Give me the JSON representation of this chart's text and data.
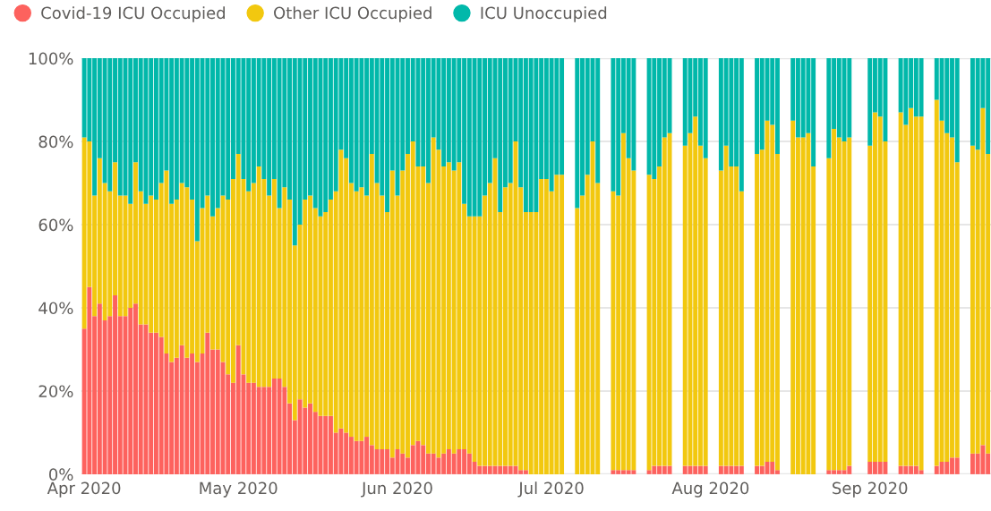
{
  "chart_data": {
    "type": "bar",
    "stacked": true,
    "x": [
      "2020-04-01",
      "2020-04-02",
      "2020-04-03",
      "2020-04-04",
      "2020-04-05",
      "2020-04-06",
      "2020-04-07",
      "2020-04-08",
      "2020-04-09",
      "2020-04-10",
      "2020-04-11",
      "2020-04-12",
      "2020-04-13",
      "2020-04-14",
      "2020-04-15",
      "2020-04-16",
      "2020-04-17",
      "2020-04-18",
      "2020-04-19",
      "2020-04-20",
      "2020-04-21",
      "2020-04-22",
      "2020-04-23",
      "2020-04-24",
      "2020-04-25",
      "2020-04-26",
      "2020-04-27",
      "2020-04-28",
      "2020-04-29",
      "2020-04-30",
      "2020-05-01",
      "2020-05-02",
      "2020-05-03",
      "2020-05-04",
      "2020-05-05",
      "2020-05-06",
      "2020-05-07",
      "2020-05-08",
      "2020-05-09",
      "2020-05-10",
      "2020-05-11",
      "2020-05-12",
      "2020-05-13",
      "2020-05-14",
      "2020-05-15",
      "2020-05-16",
      "2020-05-17",
      "2020-05-18",
      "2020-05-19",
      "2020-05-20",
      "2020-05-21",
      "2020-05-22",
      "2020-05-23",
      "2020-05-24",
      "2020-05-25",
      "2020-05-26",
      "2020-05-27",
      "2020-05-28",
      "2020-05-29",
      "2020-05-30",
      "2020-05-31",
      "2020-06-01",
      "2020-06-02",
      "2020-06-03",
      "2020-06-04",
      "2020-06-05",
      "2020-06-06",
      "2020-06-07",
      "2020-06-08",
      "2020-06-09",
      "2020-06-10",
      "2020-06-11",
      "2020-06-12",
      "2020-06-13",
      "2020-06-14",
      "2020-06-15",
      "2020-06-16",
      "2020-06-17",
      "2020-06-18",
      "2020-06-19",
      "2020-06-20",
      "2020-06-21",
      "2020-06-22",
      "2020-06-23",
      "2020-06-24",
      "2020-06-25",
      "2020-06-26",
      "2020-06-27",
      "2020-06-28",
      "2020-06-29",
      "2020-06-30",
      "2020-07-01",
      "2020-07-02",
      "2020-07-03",
      "2020-07-06",
      "2020-07-07",
      "2020-07-08",
      "2020-07-09",
      "2020-07-10",
      "2020-07-13",
      "2020-07-14",
      "2020-07-15",
      "2020-07-16",
      "2020-07-17",
      "2020-07-20",
      "2020-07-21",
      "2020-07-22",
      "2020-07-23",
      "2020-07-24",
      "2020-07-27",
      "2020-07-28",
      "2020-07-29",
      "2020-07-30",
      "2020-07-31",
      "2020-08-03",
      "2020-08-04",
      "2020-08-05",
      "2020-08-06",
      "2020-08-07",
      "2020-08-10",
      "2020-08-11",
      "2020-08-12",
      "2020-08-13",
      "2020-08-14",
      "2020-08-17",
      "2020-08-18",
      "2020-08-19",
      "2020-08-20",
      "2020-08-21",
      "2020-08-24",
      "2020-08-25",
      "2020-08-26",
      "2020-08-27",
      "2020-08-28",
      "2020-09-01",
      "2020-09-02",
      "2020-09-03",
      "2020-09-04",
      "2020-09-07",
      "2020-09-08",
      "2020-09-09",
      "2020-09-10",
      "2020-09-11",
      "2020-09-14",
      "2020-09-15",
      "2020-09-16",
      "2020-09-17",
      "2020-09-18",
      "2020-09-21",
      "2020-09-22",
      "2020-09-23",
      "2020-09-24"
    ],
    "series": [
      {
        "name": "Covid-19 ICU Occupied",
        "color": "#fd625e",
        "values": [
          35,
          45,
          38,
          41,
          37,
          38,
          43,
          38,
          38,
          40,
          41,
          36,
          36,
          34,
          34,
          33,
          29,
          27,
          28,
          31,
          28,
          29,
          27,
          29,
          34,
          30,
          30,
          27,
          24,
          22,
          31,
          24,
          22,
          22,
          21,
          21,
          21,
          23,
          23,
          21,
          17,
          13,
          18,
          16,
          17,
          15,
          14,
          14,
          14,
          10,
          11,
          10,
          9,
          8,
          8,
          9,
          7,
          6,
          6,
          6,
          4,
          6,
          5,
          4,
          7,
          8,
          7,
          5,
          5,
          4,
          5,
          6,
          5,
          6,
          6,
          5,
          3,
          2,
          2,
          2,
          2,
          2,
          2,
          2,
          2,
          1,
          1,
          0,
          0,
          0,
          0,
          0,
          0,
          0,
          0,
          0,
          0,
          0,
          0,
          1,
          1,
          1,
          1,
          1,
          1,
          2,
          2,
          2,
          2,
          2,
          2,
          2,
          2,
          2,
          2,
          2,
          2,
          2,
          2,
          2,
          2,
          3,
          3,
          1,
          0,
          0,
          0,
          0,
          0,
          1,
          1,
          1,
          1,
          2,
          3,
          3,
          3,
          3,
          2,
          2,
          2,
          2,
          1,
          2,
          3,
          3,
          4,
          4,
          5,
          5,
          7,
          5
        ]
      },
      {
        "name": "Other ICU Occupied",
        "color": "#f2c80f",
        "values": [
          46,
          35,
          29,
          35,
          33,
          30,
          32,
          29,
          29,
          25,
          34,
          32,
          29,
          33,
          32,
          37,
          44,
          38,
          38,
          39,
          41,
          37,
          29,
          35,
          33,
          32,
          34,
          40,
          42,
          49,
          46,
          47,
          46,
          48,
          53,
          50,
          46,
          48,
          41,
          48,
          49,
          42,
          42,
          50,
          50,
          49,
          48,
          49,
          52,
          58,
          67,
          66,
          61,
          60,
          61,
          58,
          70,
          64,
          61,
          57,
          69,
          61,
          68,
          73,
          73,
          66,
          67,
          65,
          76,
          74,
          69,
          69,
          68,
          69,
          59,
          57,
          59,
          60,
          65,
          68,
          74,
          61,
          67,
          68,
          78,
          68,
          62,
          63,
          63,
          71,
          71,
          68,
          72,
          72,
          64,
          67,
          72,
          80,
          70,
          67,
          66,
          81,
          75,
          72,
          71,
          69,
          72,
          79,
          80,
          77,
          80,
          84,
          77,
          74,
          71,
          77,
          72,
          72,
          66,
          75,
          76,
          82,
          81,
          76,
          85,
          81,
          81,
          82,
          74,
          75,
          82,
          80,
          79,
          79,
          76,
          84,
          83,
          77,
          85,
          82,
          86,
          84,
          85,
          88,
          82,
          79,
          77,
          71,
          74,
          73,
          81,
          72
        ]
      },
      {
        "name": "ICU Unoccupied",
        "color": "#01b8aa",
        "values": [
          19,
          20,
          33,
          24,
          30,
          32,
          25,
          33,
          33,
          35,
          25,
          32,
          35,
          33,
          34,
          30,
          27,
          35,
          34,
          30,
          31,
          34,
          44,
          36,
          33,
          38,
          36,
          33,
          34,
          29,
          23,
          29,
          32,
          30,
          26,
          29,
          33,
          29,
          36,
          31,
          34,
          45,
          40,
          34,
          33,
          36,
          38,
          37,
          34,
          32,
          22,
          24,
          30,
          32,
          31,
          33,
          23,
          30,
          33,
          37,
          27,
          33,
          27,
          23,
          20,
          26,
          26,
          30,
          19,
          22,
          26,
          25,
          27,
          25,
          35,
          38,
          38,
          38,
          33,
          30,
          24,
          37,
          31,
          30,
          20,
          31,
          37,
          37,
          37,
          29,
          29,
          32,
          28,
          28,
          36,
          33,
          28,
          20,
          30,
          32,
          33,
          18,
          24,
          27,
          28,
          29,
          26,
          19,
          18,
          21,
          18,
          14,
          21,
          24,
          27,
          21,
          26,
          26,
          32,
          23,
          22,
          15,
          16,
          23,
          15,
          19,
          19,
          18,
          26,
          24,
          17,
          19,
          20,
          19,
          21,
          13,
          14,
          20,
          13,
          16,
          12,
          14,
          14,
          10,
          15,
          18,
          19,
          25,
          21,
          22,
          12,
          23
        ]
      }
    ],
    "xlim": [
      "2020-03-31T10:00",
      "2020-09-24T14:00"
    ],
    "xticks": [
      {
        "value": "2020-04-01",
        "label": "Apr 2020"
      },
      {
        "value": "2020-05-01",
        "label": "May 2020"
      },
      {
        "value": "2020-06-01",
        "label": "Jun 2020"
      },
      {
        "value": "2020-07-01",
        "label": "Jul 2020"
      },
      {
        "value": "2020-08-01",
        "label": "Aug 2020"
      },
      {
        "value": "2020-09-01",
        "label": "Sep 2020"
      }
    ],
    "ylim": [
      0,
      100
    ],
    "yticks": [
      {
        "value": 0,
        "label": "0%"
      },
      {
        "value": 20,
        "label": "20%"
      },
      {
        "value": 40,
        "label": "40%"
      },
      {
        "value": 60,
        "label": "60%"
      },
      {
        "value": 80,
        "label": "80%"
      },
      {
        "value": 100,
        "label": "100%"
      }
    ],
    "grid": "y",
    "legend": "top left"
  }
}
